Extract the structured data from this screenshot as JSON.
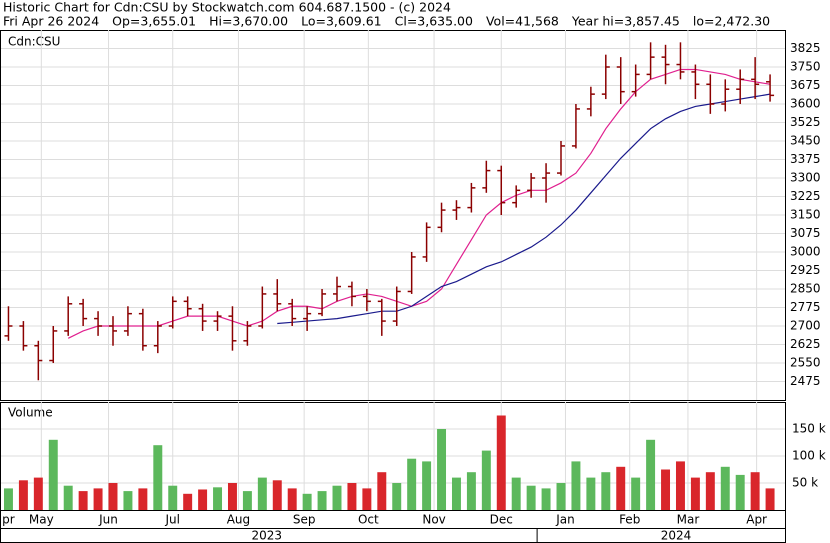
{
  "header": {
    "title": "Historic Chart for Cdn:CSU by Stockwatch.com 604.687.1500 - (c) 2024",
    "stats": [
      "Fri Apr 26 2024",
      "Op=3,655.01",
      "Hi=3,670.00",
      "Lo=3,609.61",
      "Cl=3,635.00",
      "Vol=41,568",
      "Year hi=3,857.45",
      "lo=2,472.30"
    ]
  },
  "chart_data": {
    "type": "ohlc",
    "symbol": "Cdn:CSU",
    "volume_title": "Volume",
    "xlim": [
      -0.5,
      52
    ],
    "xticks": [
      {
        "value": 0,
        "label": "pr"
      },
      {
        "value": 2.2,
        "label": "May"
      },
      {
        "value": 6.7,
        "label": "Jun"
      },
      {
        "value": 11,
        "label": "Jul"
      },
      {
        "value": 15.4,
        "label": "Aug"
      },
      {
        "value": 19.8,
        "label": "Sep"
      },
      {
        "value": 24.1,
        "label": "Oct"
      },
      {
        "value": 28.5,
        "label": "Nov"
      },
      {
        "value": 33,
        "label": "Dec"
      },
      {
        "value": 37.3,
        "label": "Jan"
      },
      {
        "value": 41.6,
        "label": "Feb"
      },
      {
        "value": 45.5,
        "label": "Mar"
      },
      {
        "value": 50.1,
        "label": "Apr"
      }
    ],
    "years": [
      {
        "value": 17.3,
        "label": "2023"
      },
      {
        "value": 44.7,
        "label": "2024"
      }
    ],
    "year_break": 35.4,
    "ylim": [
      2400,
      3900
    ],
    "yticks": [
      2475,
      2550,
      2625,
      2700,
      2775,
      2850,
      2925,
      3000,
      3075,
      3150,
      3225,
      3300,
      3375,
      3450,
      3525,
      3600,
      3675,
      3750,
      3825
    ],
    "bar_color": "#8b0000",
    "grid": true,
    "open": [
      2660,
      2700,
      2620,
      2560,
      2680,
      2790,
      2730,
      2700,
      2680,
      2750,
      2620,
      2700,
      2800,
      2770,
      2720,
      2740,
      2640,
      2700,
      2830,
      2790,
      2730,
      2750,
      2830,
      2860,
      2820,
      2800,
      2720,
      2840,
      2980,
      3100,
      3170,
      3180,
      3260,
      3330,
      3200,
      3250,
      3300,
      3320,
      3430,
      3580,
      3640,
      3750,
      3650,
      3720,
      3790,
      3760,
      3730,
      3680,
      3600,
      3660,
      3700,
      3690
    ],
    "high": [
      2780,
      2720,
      2640,
      2700,
      2820,
      2810,
      2760,
      2740,
      2780,
      2770,
      2720,
      2820,
      2820,
      2790,
      2760,
      2780,
      2720,
      2860,
      2890,
      2810,
      2780,
      2850,
      2900,
      2880,
      2850,
      2810,
      2860,
      3000,
      3120,
      3200,
      3210,
      3280,
      3370,
      3350,
      3270,
      3320,
      3360,
      3450,
      3600,
      3670,
      3800,
      3790,
      3760,
      3850,
      3840,
      3850,
      3760,
      3720,
      3700,
      3740,
      3790,
      3720
    ],
    "low": [
      2640,
      2600,
      2480,
      2550,
      2660,
      2700,
      2660,
      2620,
      2660,
      2600,
      2590,
      2690,
      2740,
      2680,
      2680,
      2600,
      2620,
      2690,
      2760,
      2700,
      2680,
      2740,
      2800,
      2780,
      2760,
      2660,
      2700,
      2830,
      2960,
      3080,
      3130,
      3160,
      3240,
      3150,
      3180,
      3220,
      3200,
      3310,
      3420,
      3550,
      3620,
      3600,
      3630,
      3700,
      3680,
      3700,
      3620,
      3560,
      3570,
      3600,
      3620,
      3609.61
    ],
    "close": [
      2700,
      2620,
      2560,
      2680,
      2790,
      2730,
      2700,
      2680,
      2750,
      2620,
      2700,
      2800,
      2770,
      2720,
      2740,
      2640,
      2700,
      2830,
      2790,
      2730,
      2750,
      2830,
      2860,
      2820,
      2800,
      2720,
      2840,
      2980,
      3100,
      3170,
      3180,
      3260,
      3330,
      3200,
      3250,
      3300,
      3320,
      3430,
      3580,
      3640,
      3750,
      3650,
      3720,
      3790,
      3760,
      3730,
      3680,
      3600,
      3660,
      3700,
      3680,
      3635
    ],
    "series": [
      {
        "name": "short average",
        "color": "#e0208f",
        "values": [
          null,
          null,
          null,
          null,
          2650,
          2680,
          2700,
          2700,
          2700,
          2700,
          2700,
          2720,
          2740,
          2740,
          2740,
          2720,
          2700,
          2720,
          2760,
          2780,
          2780,
          2770,
          2800,
          2820,
          2830,
          2820,
          2800,
          2780,
          2800,
          2850,
          2950,
          3050,
          3150,
          3200,
          3230,
          3250,
          3250,
          3280,
          3320,
          3400,
          3500,
          3580,
          3650,
          3700,
          3720,
          3740,
          3740,
          3730,
          3720,
          3700,
          3690,
          3680
        ]
      },
      {
        "name": "long average",
        "color": "#1a1a8c",
        "values": [
          null,
          null,
          null,
          null,
          null,
          null,
          null,
          null,
          null,
          null,
          null,
          null,
          null,
          null,
          null,
          null,
          null,
          null,
          2710,
          2715,
          2720,
          2725,
          2730,
          2740,
          2750,
          2760,
          2760,
          2780,
          2820,
          2860,
          2880,
          2910,
          2940,
          2960,
          2990,
          3020,
          3060,
          3110,
          3170,
          3240,
          3310,
          3380,
          3440,
          3500,
          3540,
          3570,
          3590,
          3600,
          3610,
          3620,
          3630,
          3640
        ]
      }
    ],
    "volume": [
      40000,
      55000,
      60000,
      130000,
      45000,
      35000,
      40000,
      50000,
      35000,
      40000,
      120000,
      45000,
      30000,
      38000,
      42000,
      50000,
      35000,
      60000,
      55000,
      40000,
      30000,
      35000,
      45000,
      50000,
      40000,
      70000,
      50000,
      95000,
      90000,
      150000,
      60000,
      70000,
      110000,
      175000,
      60000,
      45000,
      40000,
      50000,
      90000,
      60000,
      70000,
      80000,
      60000,
      130000,
      75000,
      90000,
      60000,
      70000,
      80000,
      65000,
      70000,
      40000
    ],
    "volume_up_color": "#5cb85c",
    "volume_down_color": "#d9262b",
    "vlim": [
      0,
      200000
    ],
    "vticks": [
      {
        "value": 50000,
        "label": "50 k"
      },
      {
        "value": 100000,
        "label": "100 k"
      },
      {
        "value": 150000,
        "label": "150 k"
      }
    ]
  }
}
